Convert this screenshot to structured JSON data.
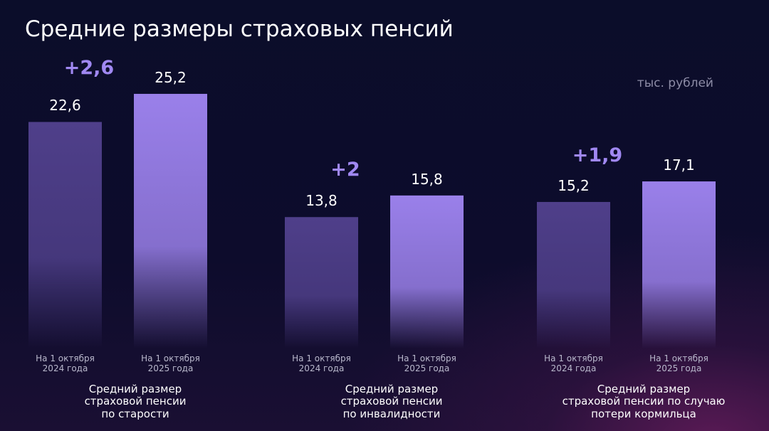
{
  "chart_data": {
    "type": "bar",
    "title": "Средние размеры страховых пенсий",
    "unit": "тыс. рублей",
    "categories": [
      "Средний размер\nстраховой пенсии\nпо старости",
      "Средний размер\nстраховой пенсии\nпо инвалидности",
      "Средний размер\nстраховой пенсии по случаю\nпотери кормильца"
    ],
    "series": [
      {
        "name": "На 1 октября\n2024 года",
        "color": "#4f3f8a",
        "values": [
          22.6,
          13.8,
          15.2
        ],
        "value_labels": [
          "22,6",
          "13,8",
          "15,2"
        ]
      },
      {
        "name": "На 1 октября\n2025 года",
        "color": "#9a80ea",
        "values": [
          25.2,
          15.8,
          17.1
        ],
        "value_labels": [
          "25,2",
          "15,8",
          "17,1"
        ]
      }
    ],
    "annotations": [
      "+2,6",
      "+2",
      "+1,9"
    ],
    "annotation_color": "#a088f2"
  }
}
